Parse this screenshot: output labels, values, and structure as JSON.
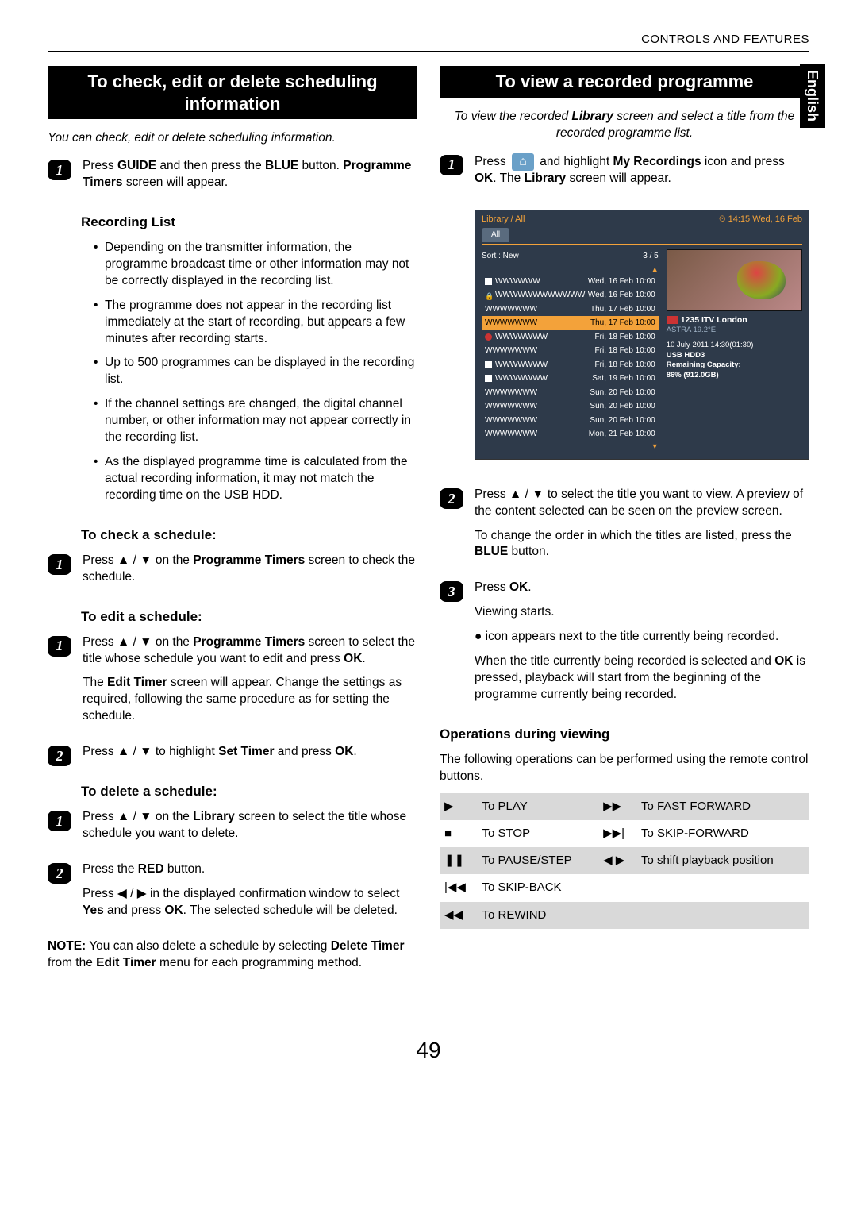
{
  "header": {
    "section": "CONTROLS AND FEATURES",
    "language_tab": "English"
  },
  "page_number": "49",
  "left": {
    "banner": "To check, edit or delete scheduling information",
    "intro": "You can check, edit or delete scheduling information.",
    "step1_a": "Press ",
    "step1_b": "GUIDE",
    "step1_c": " and then press the ",
    "step1_d": "BLUE",
    "step1_e": " button. ",
    "step1_f": "Programme Timers",
    "step1_g": " screen will appear.",
    "rec_list_head": "Recording List",
    "rec_list_items": [
      "Depending on the transmitter information, the programme broadcast time or other information may not be correctly displayed in the recording list.",
      "The programme does not appear in the recording list immediately at the start of recording, but appears a few minutes after recording starts.",
      "Up to 500 programmes can be displayed in the recording list.",
      "If the channel settings are changed, the digital channel number, or other information may not appear correctly in the recording list.",
      "As the displayed programme time is calculated from the actual recording information, it may not match the recording time on the USB HDD."
    ],
    "check_head": "To check a schedule:",
    "check_a": "Press ▲ / ▼ on the ",
    "check_b": "Programme Timers",
    "check_c": " screen to check the schedule.",
    "edit_head": "To edit a schedule:",
    "edit1_a": "Press ▲ / ▼ on the ",
    "edit1_b": "Programme Timers",
    "edit1_c": " screen to select the title whose schedule you want to edit and press ",
    "edit1_d": "OK",
    "edit1_e": ".",
    "edit1_f": "The ",
    "edit1_g": "Edit Timer",
    "edit1_h": " screen will appear. Change the settings as required, following the same procedure as for setting the schedule.",
    "edit2_a": "Press ▲ / ▼ to highlight ",
    "edit2_b": "Set Timer",
    "edit2_c": " and press ",
    "edit2_d": "OK",
    "edit2_e": ".",
    "del_head": "To delete a schedule:",
    "del1_a": "Press ▲ / ▼ on the ",
    "del1_b": "Library",
    "del1_c": " screen to select the title whose schedule you want to delete.",
    "del2_a": "Press the ",
    "del2_b": "RED",
    "del2_c": " button.",
    "del2_d": "Press ◀ / ▶ in the displayed confirmation window to select ",
    "del2_e": "Yes",
    "del2_f": " and press ",
    "del2_g": "OK",
    "del2_h": ". The selected schedule will be deleted.",
    "note_a": "NOTE:",
    "note_b": " You can also delete a schedule by selecting ",
    "note_c": "Delete Timer",
    "note_d": " from the ",
    "note_e": "Edit Timer",
    "note_f": " menu for each programming method."
  },
  "right": {
    "banner": "To view a recorded programme",
    "intro_a": "To view the recorded ",
    "intro_b": "Library",
    "intro_c": " screen and select a title from the recorded programme list.",
    "s1_a": "Press ",
    "s1_b": " and highlight ",
    "s1_c": "My Recordings",
    "s1_d": " icon and press ",
    "s1_e": "OK",
    "s1_f": ". The ",
    "s1_g": "Library",
    "s1_h": " screen will appear.",
    "lib": {
      "title": "Library / All",
      "clock": "⏲ 14:15 Wed, 16 Feb",
      "tab": "All",
      "sort": "Sort : New",
      "counter": "3 / 5",
      "rows": [
        {
          "icon": "stop",
          "name": "WWWWWW",
          "date": "Wed, 16 Feb 10:00",
          "sel": false
        },
        {
          "icon": "lock",
          "name": "WWWWWWWWWWWW",
          "date": "Wed, 16 Feb 10:00",
          "sel": false
        },
        {
          "icon": "",
          "name": "WWWWWWW",
          "date": "Thu, 17 Feb 10:00",
          "sel": false
        },
        {
          "icon": "",
          "name": "WWWWWWW",
          "date": "Thu, 17 Feb 10:00",
          "sel": true
        },
        {
          "icon": "rec",
          "name": "WWWWWWW",
          "date": "Fri, 18 Feb 10:00",
          "sel": false
        },
        {
          "icon": "",
          "name": "WWWWWWW",
          "date": "Fri, 18 Feb 10:00",
          "sel": false
        },
        {
          "icon": "stop",
          "name": "WWWWWWW",
          "date": "Fri, 18 Feb 10:00",
          "sel": false
        },
        {
          "icon": "stop",
          "name": "WWWWWWW",
          "date": "Sat, 19 Feb 10:00",
          "sel": false
        },
        {
          "icon": "",
          "name": "WWWWWWW",
          "date": "Sun, 20 Feb 10:00",
          "sel": false
        },
        {
          "icon": "",
          "name": "WWWWWWW",
          "date": "Sun, 20 Feb 10:00",
          "sel": false
        },
        {
          "icon": "",
          "name": "WWWWWWW",
          "date": "Sun, 20 Feb 10:00",
          "sel": false
        },
        {
          "icon": "",
          "name": "WWWWWWW",
          "date": "Mon, 21 Feb 10:00",
          "sel": false
        }
      ],
      "channel": "1235 ITV London",
      "sat": "ASTRA 19.2°E",
      "meta1": "10 July 2011  14:30(01:30)",
      "meta2": "USB HDD3",
      "meta3": "Remaining Capacity:",
      "meta4": "86% (912.0GB)"
    },
    "s2_a": "Press ▲ / ▼ to select the title you want to view. A preview of the content selected can be seen on the preview screen.",
    "s2_b": "To change the order in which the titles are listed, press the ",
    "s2_c": "BLUE",
    "s2_d": " button.",
    "s3_a": "Press ",
    "s3_b": "OK",
    "s3_c": ".",
    "s3_d": "Viewing starts.",
    "s3_e": "● icon appears next to the title currently being recorded.",
    "s3_f": "When the title currently being recorded is selected and ",
    "s3_g": "OK",
    "s3_h": " is pressed, playback will start from the beginning of the programme currently being recorded.",
    "ops_head": "Operations during viewing",
    "ops_intro": "The following operations can be performed using the remote control buttons.",
    "ops": [
      {
        "s1": "▶",
        "l1": "To PLAY",
        "s2": "▶▶",
        "l2": "To FAST FORWARD",
        "shade": true
      },
      {
        "s1": "■",
        "l1": "To STOP",
        "s2": "▶▶|",
        "l2": "To SKIP-FORWARD",
        "shade": false
      },
      {
        "s1": "❚❚",
        "l1": "To PAUSE/STEP",
        "s2": "◀ ▶",
        "l2": "To shift playback position",
        "shade": true
      },
      {
        "s1": "|◀◀",
        "l1": "To SKIP-BACK",
        "s2": "",
        "l2": "",
        "shade": false
      },
      {
        "s1": "◀◀",
        "l1": "To REWIND",
        "s2": "",
        "l2": "",
        "shade": true
      }
    ]
  },
  "colors": {
    "banner_bg": "#000000",
    "lib_bg": "#2e3a4a",
    "lib_accent": "#f3a23a",
    "shade": "#d9d9d9",
    "home_btn": "#6aa0c8"
  }
}
